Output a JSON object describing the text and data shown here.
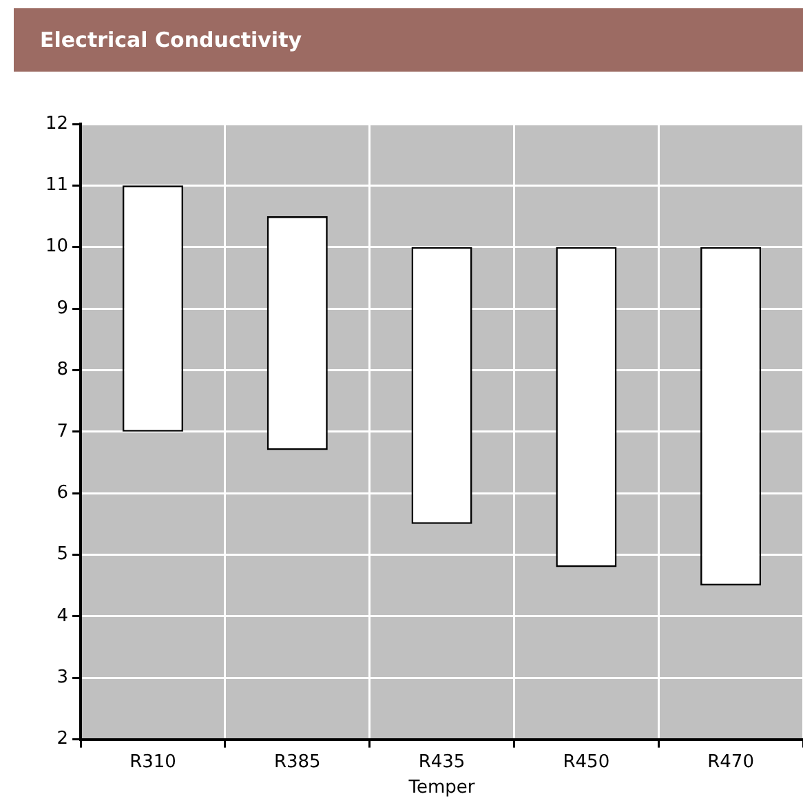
{
  "chart_data": {
    "type": "bar",
    "title": "Electrical Conductivity",
    "xlabel": "Temper",
    "categories": [
      "R310",
      "R385",
      "R435",
      "R450",
      "R470"
    ],
    "values": [
      4,
      3.8,
      4.5,
      5.2,
      5.5
    ],
    "base": [
      7,
      6.7,
      5.5,
      4.8,
      4.5
    ],
    "color": "#ffffff",
    "ylim": [
      2,
      12
    ],
    "yticks": [
      2,
      3,
      4,
      5,
      6,
      7,
      8,
      9,
      10,
      11,
      12
    ],
    "grid": true,
    "legend": false
  }
}
